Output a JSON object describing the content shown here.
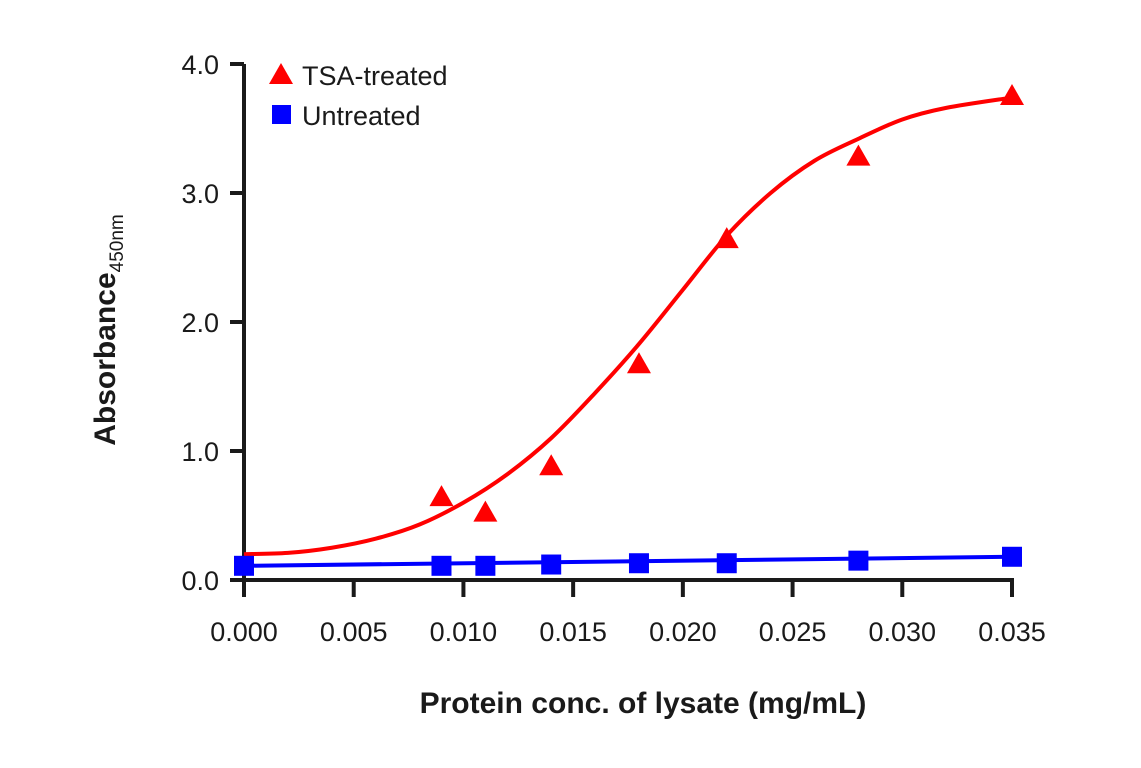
{
  "chart_data": {
    "type": "scatter",
    "title": "",
    "xlabel": "Protein conc. of lysate (mg/mL)",
    "ylabel": "Absorbance",
    "ylabel_subscript": "450nm",
    "xlim": [
      0,
      0.035
    ],
    "ylim": [
      0,
      4.0
    ],
    "grid": false,
    "legend_position": "top-left",
    "x_ticks": [
      "0.000",
      "0.005",
      "0.010",
      "0.015",
      "0.020",
      "0.025",
      "0.030",
      "0.035"
    ],
    "x_tick_values": [
      0,
      0.005,
      0.01,
      0.015,
      0.02,
      0.025,
      0.03,
      0.035
    ],
    "y_ticks": [
      "0.0",
      "1.0",
      "2.0",
      "3.0",
      "4.0"
    ],
    "y_tick_values": [
      0,
      1,
      2,
      3,
      4
    ],
    "series": [
      {
        "name": "TSA-treated",
        "marker": "triangle",
        "color": "#ff0000",
        "fit": "sigmoidal",
        "x": [
          0.009,
          0.011,
          0.014,
          0.018,
          0.022,
          0.028,
          0.035
        ],
        "y": [
          0.65,
          0.53,
          0.89,
          1.68,
          2.65,
          3.29,
          3.76
        ],
        "fit_x": [
          0,
          0.002,
          0.004,
          0.006,
          0.008,
          0.01,
          0.012,
          0.014,
          0.016,
          0.018,
          0.02,
          0.022,
          0.024,
          0.026,
          0.028,
          0.03,
          0.032,
          0.035
        ],
        "fit_y": [
          0.2,
          0.21,
          0.25,
          0.32,
          0.43,
          0.6,
          0.82,
          1.1,
          1.45,
          1.83,
          2.25,
          2.67,
          3.0,
          3.25,
          3.42,
          3.57,
          3.66,
          3.74
        ]
      },
      {
        "name": "Untreated",
        "marker": "square",
        "color": "#0000ff",
        "fit": "linear",
        "x": [
          0.0,
          0.009,
          0.011,
          0.014,
          0.018,
          0.022,
          0.028,
          0.035
        ],
        "y": [
          0.11,
          0.11,
          0.11,
          0.12,
          0.13,
          0.13,
          0.15,
          0.18
        ],
        "fit_x": [
          0,
          0.035
        ],
        "fit_y": [
          0.11,
          0.18
        ]
      }
    ]
  }
}
